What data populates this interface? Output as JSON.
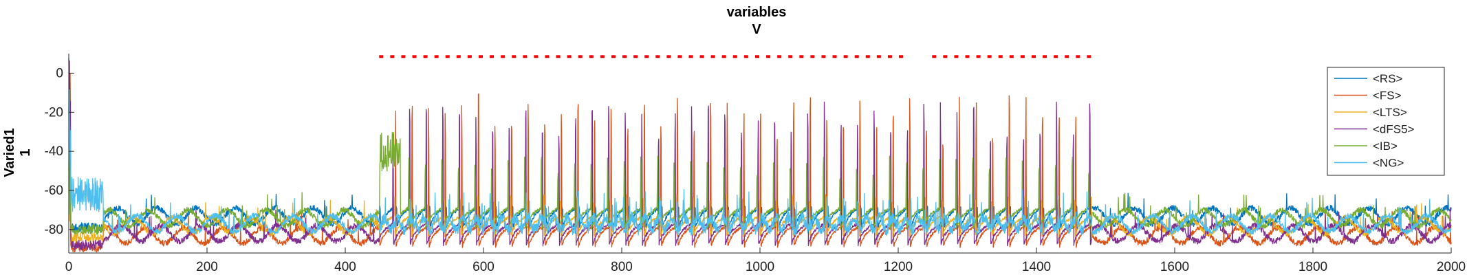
{
  "chart_data": {
    "type": "line",
    "title": [
      "variables",
      "V"
    ],
    "ylabel": [
      "Varied1",
      "1"
    ],
    "xlabel": "",
    "xlim": [
      0,
      2000
    ],
    "ylim": [
      -92,
      10
    ],
    "x_ticks": [
      0,
      200,
      400,
      600,
      800,
      1000,
      1200,
      1400,
      1600,
      1800,
      2000
    ],
    "y_ticks": [
      0,
      -20,
      -40,
      -60,
      -80
    ],
    "grid": false,
    "legend_position": "top-right",
    "series": [
      {
        "name": "<RS>",
        "color": "#0072BD",
        "baseline": -73,
        "spike_peak": -68
      },
      {
        "name": "<FS>",
        "color": "#D95319",
        "baseline": -83,
        "spike_peak": -10
      },
      {
        "name": "<LTS>",
        "color": "#EDB120",
        "baseline": -78,
        "spike_peak": -62
      },
      {
        "name": "<dFS5>",
        "color": "#7E2F8E",
        "baseline": -82,
        "spike_peak": -14
      },
      {
        "name": "<IB>",
        "color": "#77AC30",
        "baseline": -74,
        "spike_peak": -42
      },
      {
        "name": "<NG>",
        "color": "#4DBEEE",
        "baseline": -77,
        "spike_peak": -62
      }
    ],
    "oscillation_period": 24,
    "oscillation_window": [
      450,
      1480
    ],
    "stimulus_markers": {
      "color": "#FF0000",
      "y": 8.5,
      "x_start": 452,
      "x_end": 1482,
      "step": 16,
      "gap": [
        1210,
        1240
      ]
    }
  }
}
